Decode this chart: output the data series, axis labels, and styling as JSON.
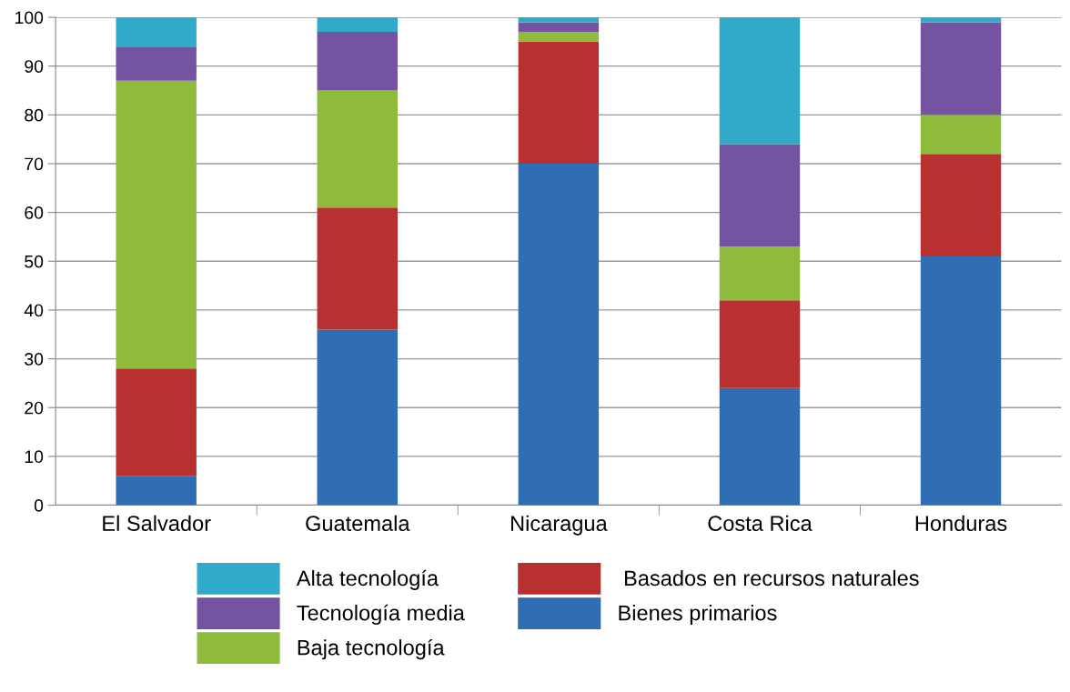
{
  "chart_data": {
    "type": "bar",
    "stacked": true,
    "categories": [
      "El Salvador",
      "Guatemala",
      "Nicaragua",
      "Costa Rica",
      "Honduras"
    ],
    "series": [
      {
        "name": "Bienes primarios",
        "color": "#2f6db5",
        "values": [
          6,
          36,
          70,
          24,
          51
        ]
      },
      {
        "name": " Basados en recursos naturales",
        "color": "#b8302f",
        "values": [
          22,
          25,
          25,
          18,
          21
        ]
      },
      {
        "name": "Baja tecnología",
        "color": "#8fbb3c",
        "values": [
          59,
          24,
          2,
          11,
          8
        ]
      },
      {
        "name": "Tecnología media",
        "color": "#7453a0",
        "values": [
          7,
          12,
          2,
          21,
          19
        ]
      },
      {
        "name": "Alta tecnología",
        "color": "#31a9c9",
        "values": [
          6,
          3,
          1,
          26,
          1
        ]
      }
    ],
    "ylim": [
      0,
      100
    ],
    "yticks": [
      0,
      10,
      20,
      30,
      40,
      50,
      60,
      70,
      80,
      90,
      100
    ],
    "grid": "y",
    "legend": "bottom"
  }
}
